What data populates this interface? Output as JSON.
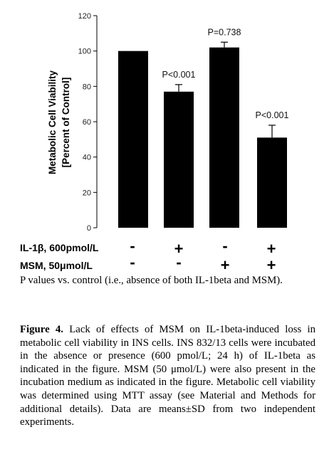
{
  "chart_data": {
    "type": "bar",
    "ylabel_line1": "Metabolic Cell Viability",
    "ylabel_line2": "[Percent of Control]",
    "ylim": [
      0,
      120
    ],
    "yticks": [
      "0",
      "20",
      "40",
      "60",
      "80",
      "100",
      "120"
    ],
    "values": [
      100,
      77,
      102,
      51
    ],
    "errors": [
      0,
      4,
      3,
      7
    ],
    "bar_color": "#000000",
    "annotations": [
      "",
      "P<0.001",
      "P=0.738",
      "P<0.001"
    ],
    "il1b_label": "IL-1β, 600pmol/L",
    "msm_label": "MSM, 50μmol/L",
    "il1b_signs": [
      "-",
      "+",
      "-",
      "+"
    ],
    "msm_signs": [
      "-",
      "-",
      "+",
      "+"
    ]
  },
  "note": "P values vs. control (i.e., absence of both IL-1beta and MSM).",
  "caption": {
    "figure_label": "Figure 4.",
    "text": "Lack of effects of MSM on IL-1beta-induced loss in metabolic cell viability in INS cells. INS 832/13 cells were incubated in the absence or presence (600 pmol/L; 24 h) of IL-1beta as indicated in the figure. MSM (50 μmol/L) were also present in the incubation medium as indicated in the figure. Metabolic cell viability was determined using MTT assay (see Material and Methods for additional details). Data are means±SD from two independent experiments."
  }
}
